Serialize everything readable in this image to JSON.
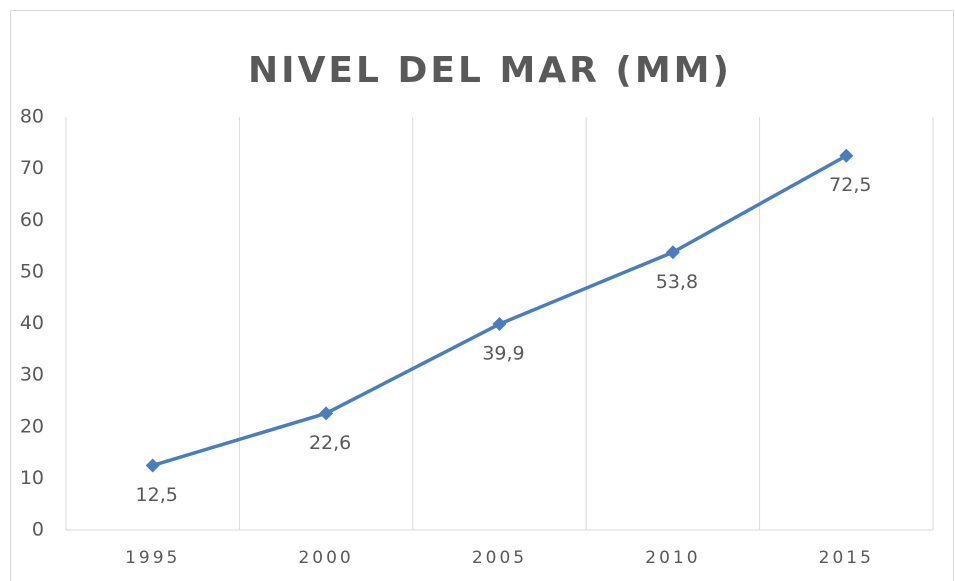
{
  "chart_data": {
    "type": "line",
    "title": "NIVEL DEL MAR (MM)",
    "categories": [
      "1995",
      "2000",
      "2005",
      "2010",
      "2015"
    ],
    "series": [
      {
        "name": "Nivel del mar",
        "color": "#4a7ebb",
        "values": [
          12.5,
          22.6,
          39.9,
          53.8,
          72.5
        ],
        "value_labels": [
          "12,5",
          "22,6",
          "39,9",
          "53,8",
          "72,5"
        ]
      }
    ],
    "ylim": [
      0,
      80
    ],
    "yticks": [
      0,
      10,
      20,
      30,
      40,
      50,
      60,
      70,
      80
    ],
    "grid": true
  }
}
